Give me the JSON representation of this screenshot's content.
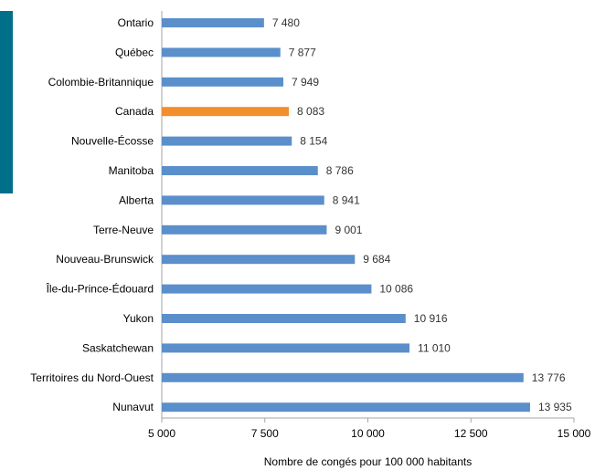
{
  "chart_data": {
    "type": "bar",
    "orientation": "horizontal",
    "categories": [
      "Ontario",
      "Québec",
      "Colombie-Britannique",
      "Canada",
      "Nouvelle-Écosse",
      "Manitoba",
      "Alberta",
      "Terre-Neuve",
      "Nouveau-Brunswick",
      "Île-du-Prince-Édouard",
      "Yukon",
      "Saskatchewan",
      "Territoires du Nord-Ouest",
      "Nunavut"
    ],
    "values": [
      7480,
      7877,
      7949,
      8083,
      8154,
      8786,
      8941,
      9001,
      9684,
      10086,
      10916,
      11010,
      13776,
      13935
    ],
    "value_labels": [
      "7 480",
      "7 877",
      "7 949",
      "8 083",
      "8 154",
      "8 786",
      "8 941",
      "9 001",
      "9 684",
      "10 086",
      "10 916",
      "11 010",
      "13 776",
      "13 935"
    ],
    "highlight_category": "Canada",
    "xlim": [
      5000,
      15000
    ],
    "xticks": [
      5000,
      7500,
      10000,
      12500,
      15000
    ],
    "xtick_labels": [
      "5 000",
      "7 500",
      "10 000",
      "12 500",
      "15 000"
    ],
    "xlabel": "Nombre de congés pour 100 000 habitants",
    "ylabel": "",
    "title": "",
    "grid": false,
    "legend": "none",
    "colors": {
      "bar": "#5b8fcb",
      "highlight": "#f28e2b",
      "axis": "#a6a6a6",
      "accent_strip": "#00708a"
    }
  }
}
